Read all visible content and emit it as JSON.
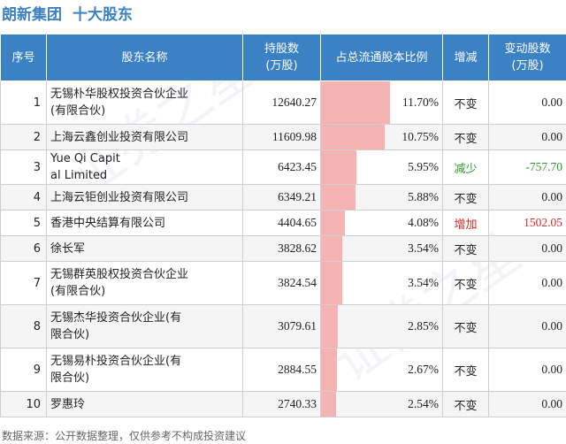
{
  "header": {
    "company": "朗新集团",
    "subtitle": "十大股东"
  },
  "table": {
    "columns": [
      "序号",
      "股东名称",
      "持股数\n(万股)",
      "占总流通股本比例",
      "增减",
      "变动股数\n(万股)"
    ],
    "rows": [
      {
        "idx": "1",
        "name": "无锡朴华股权投资合伙企业\n(有限合伙)",
        "shares": "12640.27",
        "ratio": "11.70%",
        "ratio_value": 11.7,
        "change": "不变",
        "delta": "0.00"
      },
      {
        "idx": "2",
        "name": "上海云鑫创业投资有限公司",
        "shares": "11609.98",
        "ratio": "10.75%",
        "ratio_value": 10.75,
        "change": "不变",
        "delta": "0.00"
      },
      {
        "idx": "3",
        "name": "Yue Qi Capit\nal Limited",
        "shares": "6423.45",
        "ratio": "5.95%",
        "ratio_value": 5.95,
        "change": "减少",
        "delta": "-757.70"
      },
      {
        "idx": "4",
        "name": "上海云钜创业投资有限公司",
        "shares": "6349.21",
        "ratio": "5.88%",
        "ratio_value": 5.88,
        "change": "不变",
        "delta": "0.00"
      },
      {
        "idx": "5",
        "name": "香港中央结算有限公司",
        "shares": "4404.65",
        "ratio": "4.08%",
        "ratio_value": 4.08,
        "change": "增加",
        "delta": "1502.05"
      },
      {
        "idx": "6",
        "name": "徐长军",
        "shares": "3828.62",
        "ratio": "3.54%",
        "ratio_value": 3.54,
        "change": "不变",
        "delta": "0.00"
      },
      {
        "idx": "7",
        "name": "无锡群英股权投资合伙企业\n(有限合伙)",
        "shares": "3824.54",
        "ratio": "3.54%",
        "ratio_value": 3.54,
        "change": "不变",
        "delta": "0.00"
      },
      {
        "idx": "8",
        "name": "无锡杰华投资合伙企业(有\n限合伙)",
        "shares": "3079.61",
        "ratio": "2.85%",
        "ratio_value": 2.85,
        "change": "不变",
        "delta": "0.00"
      },
      {
        "idx": "9",
        "name": "无锡易朴投资合伙企业(有\n限合伙)",
        "shares": "2884.55",
        "ratio": "2.67%",
        "ratio_value": 2.67,
        "change": "不变",
        "delta": "0.00"
      },
      {
        "idx": "10",
        "name": "罗惠玲",
        "shares": "2740.33",
        "ratio": "2.54%",
        "ratio_value": 2.54,
        "change": "不变",
        "delta": "0.00"
      }
    ]
  },
  "footer": "数据来源：公开数据整理，仅供参考不构成投资建议",
  "colors": {
    "header_bg": "#3b82c4",
    "bar": "#f6b3b3",
    "increase": "#d42b2b",
    "decrease": "#2a9a2a"
  }
}
